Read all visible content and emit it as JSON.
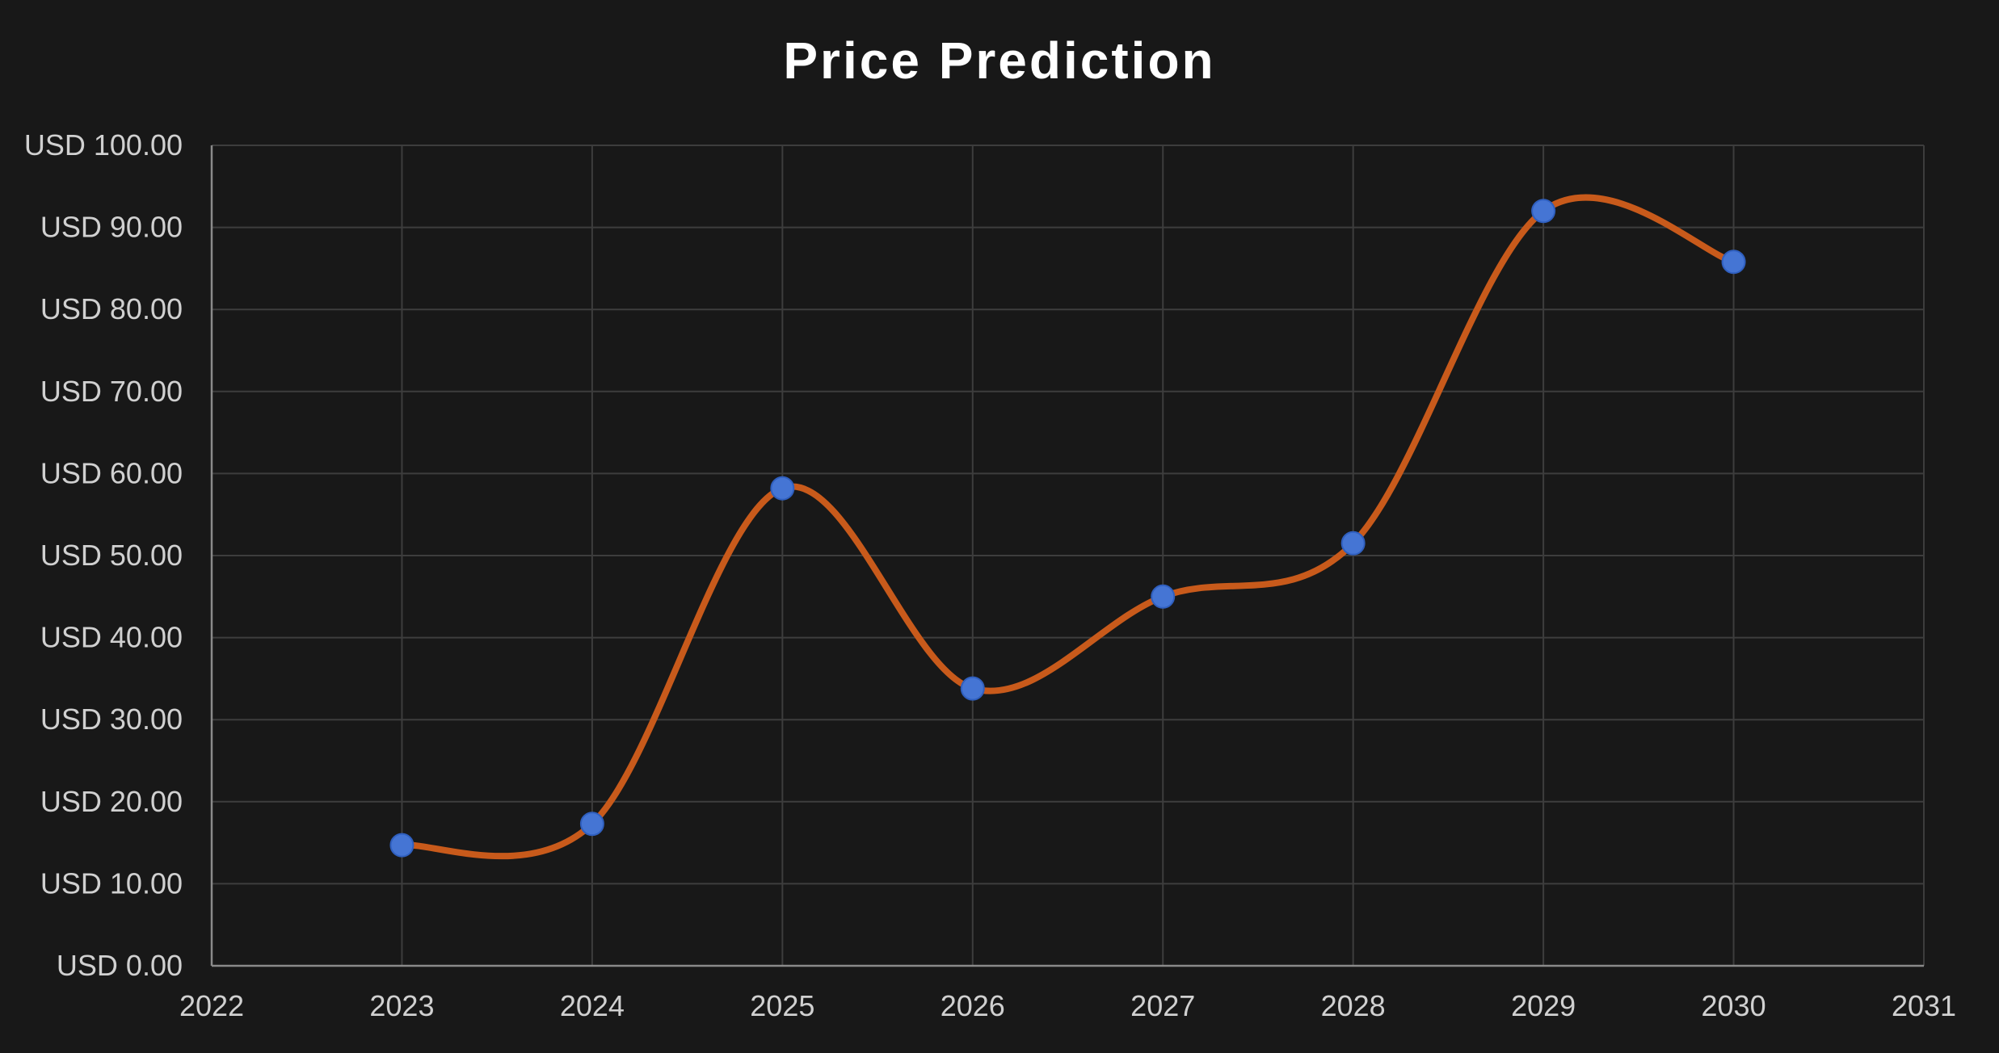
{
  "chart_data": {
    "type": "line",
    "title": "Price Prediction",
    "xlabel": "",
    "ylabel": "",
    "xlim": [
      2022,
      2031
    ],
    "ylim": [
      0,
      100
    ],
    "x_ticks": [
      2022,
      2023,
      2024,
      2025,
      2026,
      2027,
      2028,
      2029,
      2030,
      2031
    ],
    "x_tick_labels": [
      "2022",
      "2023",
      "2024",
      "2025",
      "2026",
      "2027",
      "2028",
      "2029",
      "2030",
      "2031"
    ],
    "y_ticks": [
      0,
      10,
      20,
      30,
      40,
      50,
      60,
      70,
      80,
      90,
      100
    ],
    "y_tick_labels": [
      "USD 0.00",
      "USD 10.00",
      "USD 20.00",
      "USD 30.00",
      "USD 40.00",
      "USD 50.00",
      "USD 60.00",
      "USD 70.00",
      "USD 80.00",
      "USD 90.00",
      "USD 100.00"
    ],
    "grid": true,
    "smooth": true,
    "series": [
      {
        "x": [
          2023,
          2024,
          2025,
          2026,
          2027,
          2028,
          2029,
          2030
        ],
        "y": [
          14.7,
          17.3,
          58.2,
          33.8,
          45.0,
          51.5,
          92.0,
          85.8
        ],
        "line_color": "#c85a1b",
        "marker_color": "#4575d4"
      }
    ]
  }
}
